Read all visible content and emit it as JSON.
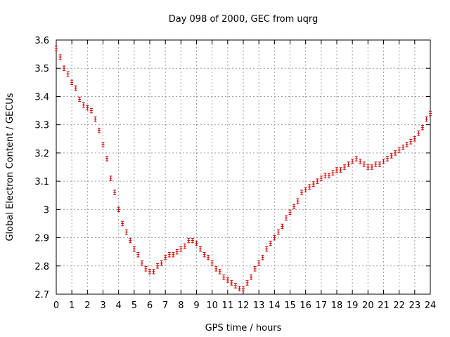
{
  "chart_data": {
    "type": "scatter",
    "title": "Day 098 of 2000, GEC from uqrg",
    "xlabel": "GPS time / hours",
    "ylabel": "Global Electron Content / GECUs",
    "xlim": [
      0,
      24
    ],
    "ylim": [
      2.7,
      3.6
    ],
    "x_ticks": [
      0,
      1,
      2,
      3,
      4,
      5,
      6,
      7,
      8,
      9,
      10,
      11,
      12,
      13,
      14,
      15,
      16,
      17,
      18,
      19,
      20,
      21,
      22,
      23,
      24
    ],
    "x_tick_labels": [
      "0",
      "1",
      "2",
      "3",
      "4",
      "5",
      "6",
      "7",
      "8",
      "9",
      "10",
      "11",
      "12",
      "13",
      "14",
      "15",
      "16",
      "17",
      "18",
      "19",
      "20",
      "21",
      "22",
      "23",
      "24"
    ],
    "y_ticks": [
      2.7,
      2.8,
      2.9,
      3.0,
      3.1,
      3.2,
      3.3,
      3.4,
      3.5,
      3.6
    ],
    "y_tick_labels": [
      "2.7",
      "2.8",
      "2.9",
      "3",
      "3.1",
      "3.2",
      "3.3",
      "3.4",
      "3.5",
      "3.6"
    ],
    "grid": true,
    "marker_color": "#cc0000",
    "error_bar": 0.008,
    "series": [
      {
        "name": "GEC",
        "points": [
          [
            0.0,
            3.57
          ],
          [
            0.25,
            3.54
          ],
          [
            0.5,
            3.5
          ],
          [
            0.75,
            3.48
          ],
          [
            1.0,
            3.45
          ],
          [
            1.25,
            3.43
          ],
          [
            1.5,
            3.39
          ],
          [
            1.75,
            3.37
          ],
          [
            2.0,
            3.36
          ],
          [
            2.25,
            3.35
          ],
          [
            2.5,
            3.32
          ],
          [
            2.75,
            3.28
          ],
          [
            3.0,
            3.23
          ],
          [
            3.25,
            3.18
          ],
          [
            3.5,
            3.11
          ],
          [
            3.75,
            3.06
          ],
          [
            4.0,
            3.0
          ],
          [
            4.25,
            2.95
          ],
          [
            4.5,
            2.92
          ],
          [
            4.75,
            2.89
          ],
          [
            5.0,
            2.86
          ],
          [
            5.25,
            2.84
          ],
          [
            5.5,
            2.81
          ],
          [
            5.75,
            2.79
          ],
          [
            6.0,
            2.78
          ],
          [
            6.25,
            2.78
          ],
          [
            6.5,
            2.8
          ],
          [
            6.75,
            2.81
          ],
          [
            7.0,
            2.83
          ],
          [
            7.25,
            2.84
          ],
          [
            7.5,
            2.84
          ],
          [
            7.75,
            2.85
          ],
          [
            8.0,
            2.86
          ],
          [
            8.25,
            2.87
          ],
          [
            8.5,
            2.89
          ],
          [
            8.75,
            2.89
          ],
          [
            9.0,
            2.88
          ],
          [
            9.25,
            2.86
          ],
          [
            9.5,
            2.84
          ],
          [
            9.75,
            2.83
          ],
          [
            10.0,
            2.81
          ],
          [
            10.25,
            2.79
          ],
          [
            10.5,
            2.78
          ],
          [
            10.75,
            2.76
          ],
          [
            11.0,
            2.75
          ],
          [
            11.25,
            2.74
          ],
          [
            11.5,
            2.73
          ],
          [
            11.75,
            2.72
          ],
          [
            12.0,
            2.72
          ],
          [
            12.25,
            2.74
          ],
          [
            12.5,
            2.76
          ],
          [
            12.75,
            2.79
          ],
          [
            13.0,
            2.81
          ],
          [
            13.25,
            2.83
          ],
          [
            13.5,
            2.86
          ],
          [
            13.75,
            2.88
          ],
          [
            14.0,
            2.9
          ],
          [
            14.25,
            2.92
          ],
          [
            14.5,
            2.94
          ],
          [
            14.75,
            2.97
          ],
          [
            15.0,
            2.99
          ],
          [
            15.25,
            3.01
          ],
          [
            15.5,
            3.03
          ],
          [
            15.75,
            3.06
          ],
          [
            16.0,
            3.07
          ],
          [
            16.25,
            3.08
          ],
          [
            16.5,
            3.09
          ],
          [
            16.75,
            3.1
          ],
          [
            17.0,
            3.11
          ],
          [
            17.25,
            3.12
          ],
          [
            17.5,
            3.12
          ],
          [
            17.75,
            3.13
          ],
          [
            18.0,
            3.14
          ],
          [
            18.25,
            3.14
          ],
          [
            18.5,
            3.15
          ],
          [
            18.75,
            3.16
          ],
          [
            19.0,
            3.17
          ],
          [
            19.25,
            3.18
          ],
          [
            19.5,
            3.17
          ],
          [
            19.75,
            3.16
          ],
          [
            20.0,
            3.15
          ],
          [
            20.25,
            3.15
          ],
          [
            20.5,
            3.16
          ],
          [
            20.75,
            3.16
          ],
          [
            21.0,
            3.17
          ],
          [
            21.25,
            3.18
          ],
          [
            21.5,
            3.19
          ],
          [
            21.75,
            3.2
          ],
          [
            22.0,
            3.21
          ],
          [
            22.25,
            3.22
          ],
          [
            22.5,
            3.23
          ],
          [
            22.75,
            3.24
          ],
          [
            23.0,
            3.25
          ],
          [
            23.25,
            3.27
          ],
          [
            23.5,
            3.29
          ],
          [
            23.75,
            3.32
          ],
          [
            24.0,
            3.34
          ]
        ]
      }
    ]
  }
}
